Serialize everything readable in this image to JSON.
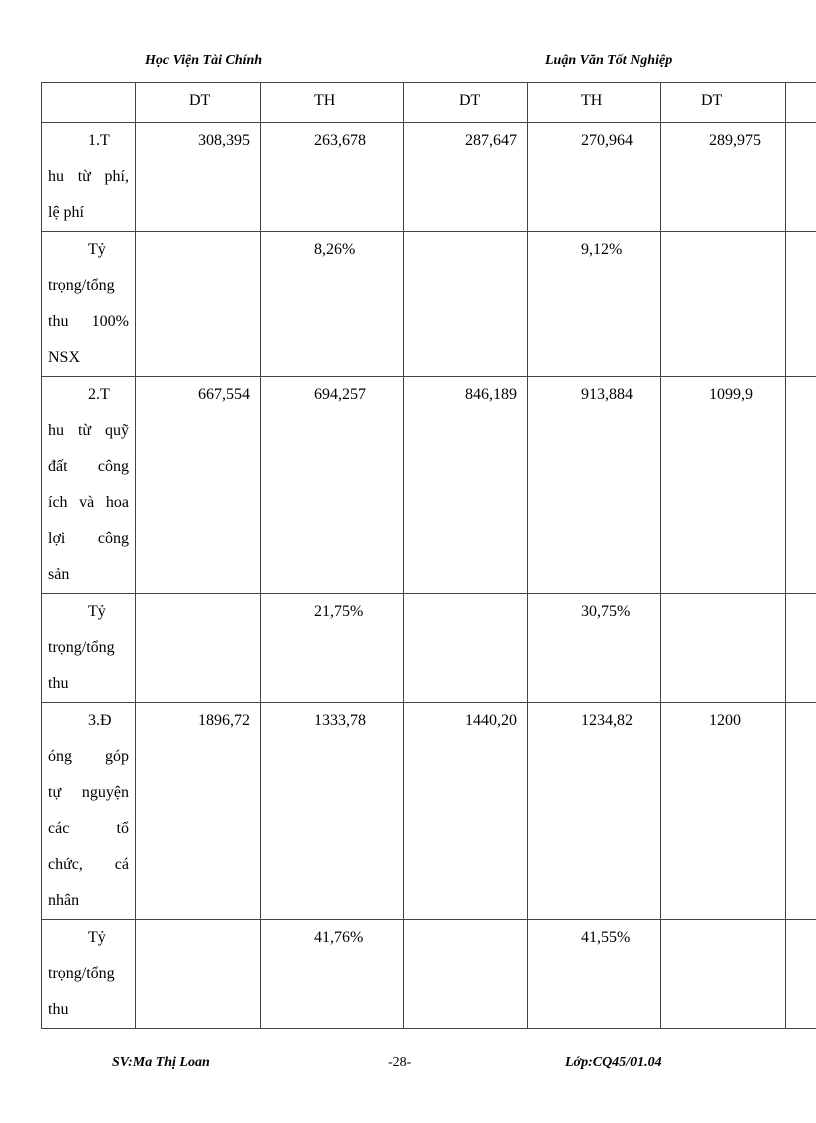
{
  "header": {
    "left": "Học Viện Tài Chính",
    "right": "Luận Văn Tốt Nghiệp"
  },
  "table": {
    "columns": [
      null,
      "DT",
      "TH",
      "DT",
      "TH",
      "DT",
      null
    ],
    "rows": [
      {
        "label": [
          "1.T",
          "hu từ phí,",
          "lệ phí"
        ],
        "cells": [
          "308,395",
          "263,678",
          "287,647",
          "270,964",
          "289,975",
          null
        ]
      },
      {
        "label": [
          "Tỷ",
          "trọng/tổng",
          "thu 100%",
          "NSX"
        ],
        "cells": [
          null,
          "8,26%",
          null,
          "9,12%",
          null,
          null
        ]
      },
      {
        "label": [
          "2.T",
          "hu từ quỹ",
          "đất công",
          "ích và hoa",
          "lợi công",
          "sản"
        ],
        "cells": [
          "667,554",
          "694,257",
          "846,189",
          "913,884",
          "1099,9",
          null
        ]
      },
      {
        "label": [
          "Tỷ",
          "trọng/tổng",
          "thu"
        ],
        "cells": [
          null,
          "21,75%",
          null,
          "30,75%",
          null,
          null
        ]
      },
      {
        "label": [
          "3.Đ",
          "óng góp",
          "tự nguyện",
          "các tổ",
          "chức, cá",
          "nhân"
        ],
        "cells": [
          "1896,72",
          "1333,78",
          "1440,20",
          "1234,82",
          "1200",
          null
        ]
      },
      {
        "label": [
          "Tỷ",
          "trọng/tổng",
          "thu"
        ],
        "cells": [
          null,
          "41,76%",
          null,
          "41,55%",
          null,
          null
        ]
      }
    ]
  },
  "footer": {
    "left": "SV:Ma Thị Loan",
    "center": "-28-",
    "right": "Lớp:CQ45/01.04"
  }
}
